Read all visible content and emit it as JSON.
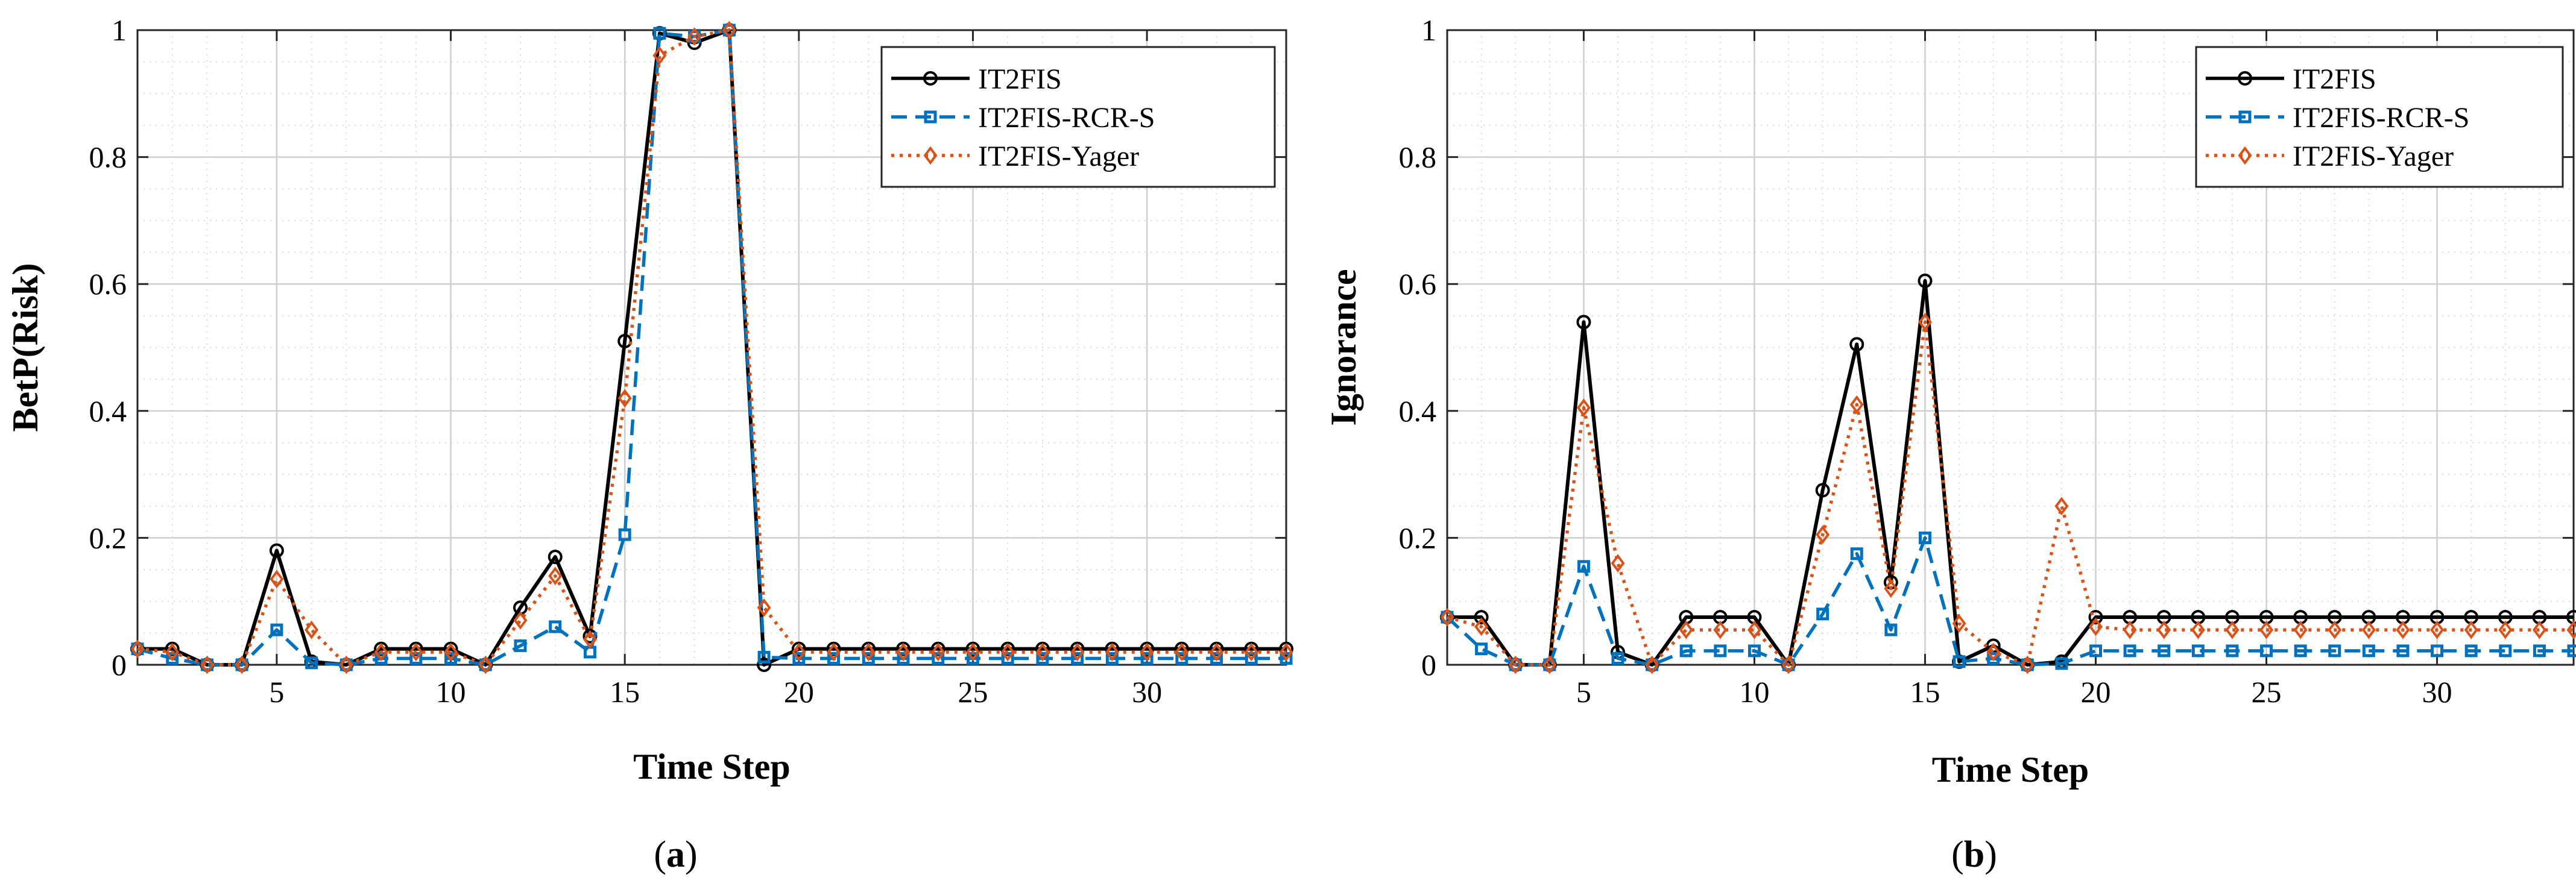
{
  "colors": {
    "it2fis": "#000000",
    "rcr": "#0072BD",
    "yager": "#D95319"
  },
  "chart_data": [
    {
      "type": "line",
      "id": "a",
      "caption": "a",
      "xlabel": "Time Step",
      "ylabel": "BetP(Risk)",
      "xlim": [
        1,
        34
      ],
      "ylim": [
        0,
        1
      ],
      "xticks": [
        5,
        10,
        15,
        20,
        25,
        30
      ],
      "yticks": [
        0,
        0.2,
        0.4,
        0.6,
        0.8,
        1
      ],
      "ytick_labels": [
        "0",
        "0.2",
        "0.4",
        "0.6",
        "0.8",
        "1"
      ],
      "grid": true,
      "legend_position": "top-right",
      "x": [
        1,
        2,
        3,
        4,
        5,
        6,
        7,
        8,
        9,
        10,
        11,
        12,
        13,
        14,
        15,
        16,
        17,
        18,
        19,
        20,
        21,
        22,
        23,
        24,
        25,
        26,
        27,
        28,
        29,
        30,
        31,
        32,
        33,
        34
      ],
      "series": [
        {
          "name": "IT2FIS",
          "style": "solid-circle",
          "values": [
            0.025,
            0.025,
            0,
            0,
            0.18,
            0.005,
            0,
            0.025,
            0.025,
            0.025,
            0,
            0.09,
            0.17,
            0.045,
            0.51,
            0.995,
            0.98,
            1.0,
            0,
            0.025,
            0.025,
            0.025,
            0.025,
            0.025,
            0.025,
            0.025,
            0.025,
            0.025,
            0.025,
            0.025,
            0.025,
            0.025,
            0.025,
            0.025
          ]
        },
        {
          "name": "IT2FIS-RCR-S",
          "style": "dashed-square",
          "values": [
            0.025,
            0.01,
            0,
            0,
            0.055,
            0.003,
            0,
            0.01,
            0.01,
            0.01,
            0,
            0.03,
            0.06,
            0.02,
            0.205,
            0.995,
            0.99,
            1.0,
            0.012,
            0.01,
            0.01,
            0.01,
            0.01,
            0.01,
            0.01,
            0.01,
            0.01,
            0.01,
            0.01,
            0.01,
            0.01,
            0.01,
            0.01,
            0.01
          ]
        },
        {
          "name": "IT2FIS-Yager",
          "style": "dotted-diamond",
          "values": [
            0.025,
            0.02,
            0,
            0,
            0.135,
            0.055,
            0,
            0.02,
            0.02,
            0.02,
            0,
            0.07,
            0.14,
            0.04,
            0.42,
            0.96,
            0.99,
            1.0,
            0.09,
            0.02,
            0.02,
            0.02,
            0.02,
            0.02,
            0.02,
            0.02,
            0.02,
            0.02,
            0.02,
            0.02,
            0.02,
            0.02,
            0.02,
            0.02
          ]
        }
      ]
    },
    {
      "type": "line",
      "id": "b",
      "caption": "b",
      "xlabel": "Time Step",
      "ylabel": "Ignorance",
      "xlim": [
        1,
        34
      ],
      "ylim": [
        0,
        1
      ],
      "xticks": [
        5,
        10,
        15,
        20,
        25,
        30
      ],
      "yticks": [
        0,
        0.2,
        0.4,
        0.6,
        0.8,
        1
      ],
      "ytick_labels": [
        "0",
        "0.2",
        "0.4",
        "0.6",
        "0.8",
        "1"
      ],
      "grid": true,
      "legend_position": "top-right",
      "x": [
        1,
        2,
        3,
        4,
        5,
        6,
        7,
        8,
        9,
        10,
        11,
        12,
        13,
        14,
        15,
        16,
        17,
        18,
        19,
        20,
        21,
        22,
        23,
        24,
        25,
        26,
        27,
        28,
        29,
        30,
        31,
        32,
        33,
        34
      ],
      "series": [
        {
          "name": "IT2FIS",
          "style": "solid-circle",
          "values": [
            0.075,
            0.075,
            0,
            0,
            0.54,
            0.02,
            0,
            0.075,
            0.075,
            0.075,
            0,
            0.275,
            0.505,
            0.13,
            0.605,
            0.005,
            0.03,
            0,
            0.005,
            0.075,
            0.075,
            0.075,
            0.075,
            0.075,
            0.075,
            0.075,
            0.075,
            0.075,
            0.075,
            0.075,
            0.075,
            0.075,
            0.075,
            0.075
          ]
        },
        {
          "name": "IT2FIS-RCR-S",
          "style": "dashed-square",
          "values": [
            0.075,
            0.025,
            0,
            0,
            0.155,
            0.01,
            0,
            0.022,
            0.022,
            0.022,
            0,
            0.08,
            0.175,
            0.055,
            0.2,
            0.005,
            0.01,
            0,
            0.002,
            0.022,
            0.022,
            0.022,
            0.022,
            0.022,
            0.022,
            0.022,
            0.022,
            0.022,
            0.022,
            0.022,
            0.022,
            0.022,
            0.022,
            0.022
          ]
        },
        {
          "name": "IT2FIS-Yager",
          "style": "dotted-diamond",
          "values": [
            0.075,
            0.06,
            0,
            0,
            0.405,
            0.16,
            0,
            0.055,
            0.055,
            0.055,
            0,
            0.205,
            0.41,
            0.12,
            0.54,
            0.065,
            0.02,
            0,
            0.25,
            0.06,
            0.055,
            0.055,
            0.055,
            0.055,
            0.055,
            0.055,
            0.055,
            0.055,
            0.055,
            0.055,
            0.055,
            0.055,
            0.055,
            0.055
          ]
        }
      ]
    }
  ]
}
